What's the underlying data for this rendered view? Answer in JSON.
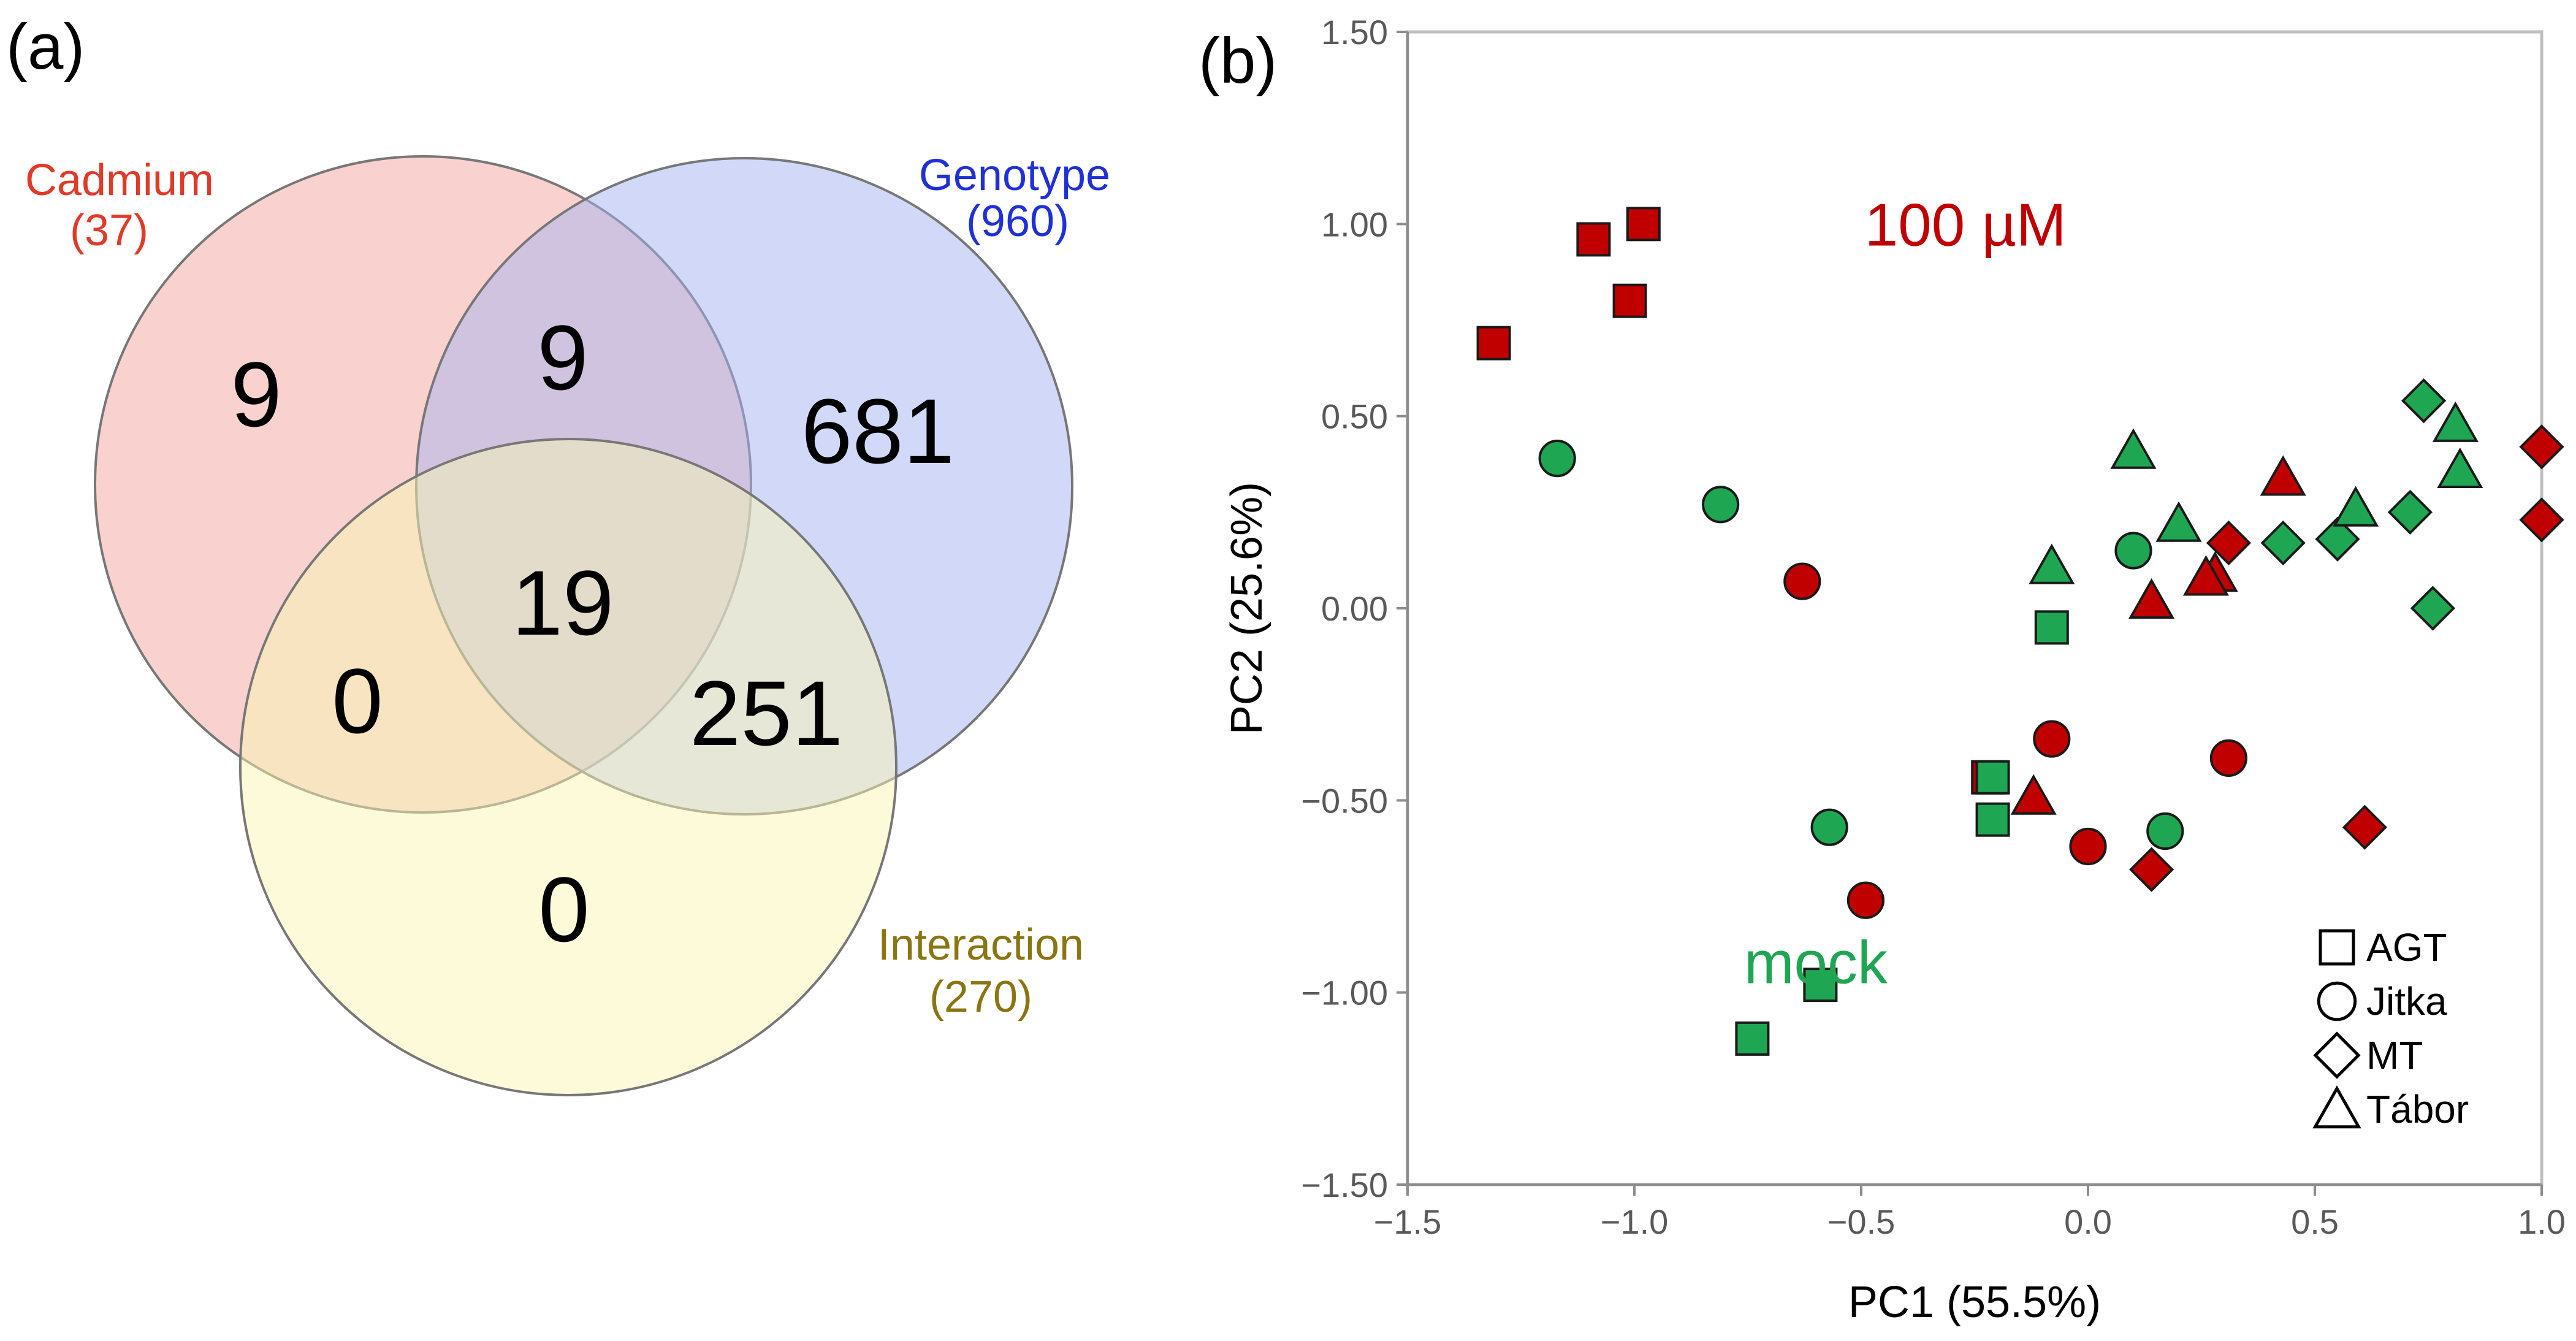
{
  "panels": {
    "a_label": "(a)",
    "b_label": "(b)"
  },
  "venn": {
    "sets": [
      {
        "id": "cadmium",
        "name": "Cadmium",
        "count_label": "(37)",
        "fill": "#f4a59f",
        "text_color": "#e03a28"
      },
      {
        "id": "genotype",
        "name": "Genotype",
        "count_label": "(960)",
        "fill": "#a6b3f2",
        "text_color": "#2030d8"
      },
      {
        "id": "interaction",
        "name": "Interaction",
        "count_label": "(270)",
        "fill": "#faf5b4",
        "text_color": "#8a7512"
      }
    ],
    "regions": {
      "cadmium_only": "9",
      "cadmium_genotype": "9",
      "genotype_only": "681",
      "all_three": "19",
      "cadmium_interaction": "0",
      "genotype_interaction": "251",
      "interaction_only": "0"
    }
  },
  "chart_data": {
    "type": "scatter",
    "xlabel": "PC1 (55.5%)",
    "ylabel": "PC2 (25.6%)",
    "xlim": [
      -1.5,
      1.0
    ],
    "ylim": [
      -1.5,
      1.5
    ],
    "xticks": [
      -1.5,
      -1.0,
      -0.5,
      0.0,
      0.5,
      1.0
    ],
    "xtick_labels": [
      "−1.5",
      "−1.0",
      "−0.5",
      "0.0",
      "0.5",
      "1.0"
    ],
    "yticks": [
      1.5,
      1.0,
      0.5,
      0.0,
      -0.5,
      -1.0,
      -1.5
    ],
    "ytick_labels": [
      "1.50",
      "1.00",
      "0.50",
      "0.00",
      "−0.50",
      "−1.00",
      "−1.50"
    ],
    "colors": {
      "100 µM": "#c00000",
      "mock": "#1ea653"
    },
    "annotations": [
      {
        "text": "100 µM",
        "x": -0.27,
        "y": 1.0,
        "color": "#c00000"
      },
      {
        "text": "mock",
        "x": -0.6,
        "y": -0.92,
        "color": "#1ea653"
      }
    ],
    "legend": {
      "position": "bottom-right",
      "entries": [
        {
          "shape": "square",
          "label": "AGT"
        },
        {
          "shape": "circle",
          "label": "Jitka"
        },
        {
          "shape": "diamond",
          "label": "MT"
        },
        {
          "shape": "triangle",
          "label": "Tábor"
        }
      ]
    },
    "points": [
      {
        "x": -1.31,
        "y": 0.69,
        "genotype": "AGT",
        "treatment": "100 µM"
      },
      {
        "x": -1.09,
        "y": 0.96,
        "genotype": "AGT",
        "treatment": "100 µM"
      },
      {
        "x": -0.98,
        "y": 1.0,
        "genotype": "AGT",
        "treatment": "100 µM"
      },
      {
        "x": -1.01,
        "y": 0.8,
        "genotype": "AGT",
        "treatment": "100 µM"
      },
      {
        "x": -0.22,
        "y": -0.44,
        "genotype": "AGT",
        "treatment": "100 µM"
      },
      {
        "x": -0.63,
        "y": 0.07,
        "genotype": "Jitka",
        "treatment": "100 µM"
      },
      {
        "x": -0.08,
        "y": -0.34,
        "genotype": "Jitka",
        "treatment": "100 µM"
      },
      {
        "x": 0.31,
        "y": -0.39,
        "genotype": "Jitka",
        "treatment": "100 µM"
      },
      {
        "x": 0.0,
        "y": -0.62,
        "genotype": "Jitka",
        "treatment": "100 µM"
      },
      {
        "x": -0.49,
        "y": -0.76,
        "genotype": "Jitka",
        "treatment": "100 µM"
      },
      {
        "x": 1.0,
        "y": 0.42,
        "genotype": "MT",
        "treatment": "100 µM"
      },
      {
        "x": 1.0,
        "y": 0.23,
        "genotype": "MT",
        "treatment": "100 µM"
      },
      {
        "x": 0.31,
        "y": 0.17,
        "genotype": "MT",
        "treatment": "100 µM"
      },
      {
        "x": 0.61,
        "y": -0.57,
        "genotype": "MT",
        "treatment": "100 µM"
      },
      {
        "x": 0.14,
        "y": -0.68,
        "genotype": "MT",
        "treatment": "100 µM"
      },
      {
        "x": 0.43,
        "y": 0.34,
        "genotype": "Tábor",
        "treatment": "100 µM"
      },
      {
        "x": 0.28,
        "y": 0.09,
        "genotype": "Tábor",
        "treatment": "100 µM"
      },
      {
        "x": 0.26,
        "y": 0.08,
        "genotype": "Tábor",
        "treatment": "100 µM"
      },
      {
        "x": 0.14,
        "y": 0.02,
        "genotype": "Tábor",
        "treatment": "100 µM"
      },
      {
        "x": -0.12,
        "y": -0.49,
        "genotype": "Tábor",
        "treatment": "100 µM"
      },
      {
        "x": -0.08,
        "y": -0.05,
        "genotype": "AGT",
        "treatment": "mock"
      },
      {
        "x": -0.21,
        "y": -0.44,
        "genotype": "AGT",
        "treatment": "mock"
      },
      {
        "x": -0.21,
        "y": -0.55,
        "genotype": "AGT",
        "treatment": "mock"
      },
      {
        "x": -0.59,
        "y": -0.98,
        "genotype": "AGT",
        "treatment": "mock"
      },
      {
        "x": -0.74,
        "y": -1.12,
        "genotype": "AGT",
        "treatment": "mock"
      },
      {
        "x": -1.17,
        "y": 0.39,
        "genotype": "Jitka",
        "treatment": "mock"
      },
      {
        "x": -0.81,
        "y": 0.27,
        "genotype": "Jitka",
        "treatment": "mock"
      },
      {
        "x": 0.1,
        "y": 0.15,
        "genotype": "Jitka",
        "treatment": "mock"
      },
      {
        "x": 0.17,
        "y": -0.58,
        "genotype": "Jitka",
        "treatment": "mock"
      },
      {
        "x": -0.57,
        "y": -0.57,
        "genotype": "Jitka",
        "treatment": "mock"
      },
      {
        "x": 0.74,
        "y": 0.54,
        "genotype": "MT",
        "treatment": "mock"
      },
      {
        "x": 0.43,
        "y": 0.17,
        "genotype": "MT",
        "treatment": "mock"
      },
      {
        "x": 0.55,
        "y": 0.18,
        "genotype": "MT",
        "treatment": "mock"
      },
      {
        "x": 0.71,
        "y": 0.25,
        "genotype": "MT",
        "treatment": "mock"
      },
      {
        "x": 0.76,
        "y": 0.0,
        "genotype": "MT",
        "treatment": "mock"
      },
      {
        "x": 0.1,
        "y": 0.41,
        "genotype": "Tábor",
        "treatment": "mock"
      },
      {
        "x": 0.81,
        "y": 0.48,
        "genotype": "Tábor",
        "treatment": "mock"
      },
      {
        "x": 0.82,
        "y": 0.36,
        "genotype": "Tábor",
        "treatment": "mock"
      },
      {
        "x": 0.59,
        "y": 0.26,
        "genotype": "Tábor",
        "treatment": "mock"
      },
      {
        "x": 0.2,
        "y": 0.22,
        "genotype": "Tábor",
        "treatment": "mock"
      },
      {
        "x": -0.08,
        "y": 0.11,
        "genotype": "Tábor",
        "treatment": "mock"
      }
    ]
  }
}
